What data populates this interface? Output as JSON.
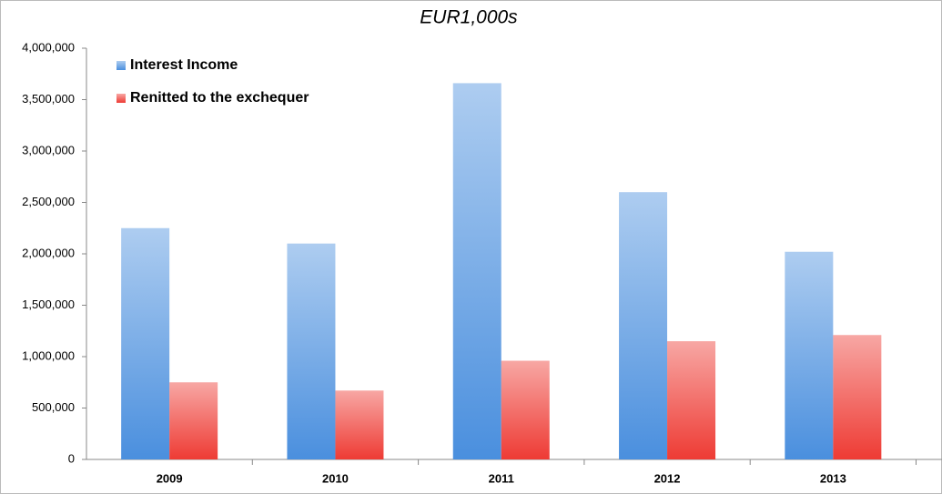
{
  "chart_data": {
    "type": "bar",
    "subtitle": "EUR1,000s",
    "categories": [
      "2009",
      "2010",
      "2011",
      "2012",
      "2013"
    ],
    "series": [
      {
        "name": "Interest Income",
        "color": "#4a8fde",
        "values": [
          2250000,
          2100000,
          3660000,
          2600000,
          2020000
        ]
      },
      {
        "name": "Renitted to the exchequer",
        "color": "#ee3b34",
        "values": [
          750000,
          670000,
          960000,
          1150000,
          1210000
        ]
      }
    ],
    "ylim": [
      0,
      4000000
    ],
    "yticks": [
      0,
      {
        "value": 500000,
        "label": "500,000"
      },
      {
        "value": 1000000,
        "label": "1,000,000"
      },
      {
        "value": 1500000,
        "label": "1,500,000"
      },
      {
        "value": 2000000,
        "label": "2,000,000"
      },
      {
        "value": 2500000,
        "label": "2,500,000"
      },
      {
        "value": 3000000,
        "label": "3,000,000"
      },
      {
        "value": 3500000,
        "label": "3,500,000"
      },
      {
        "value": 4000000,
        "label": "4,000,000"
      }
    ],
    "grid": false,
    "legend": "top-left"
  }
}
